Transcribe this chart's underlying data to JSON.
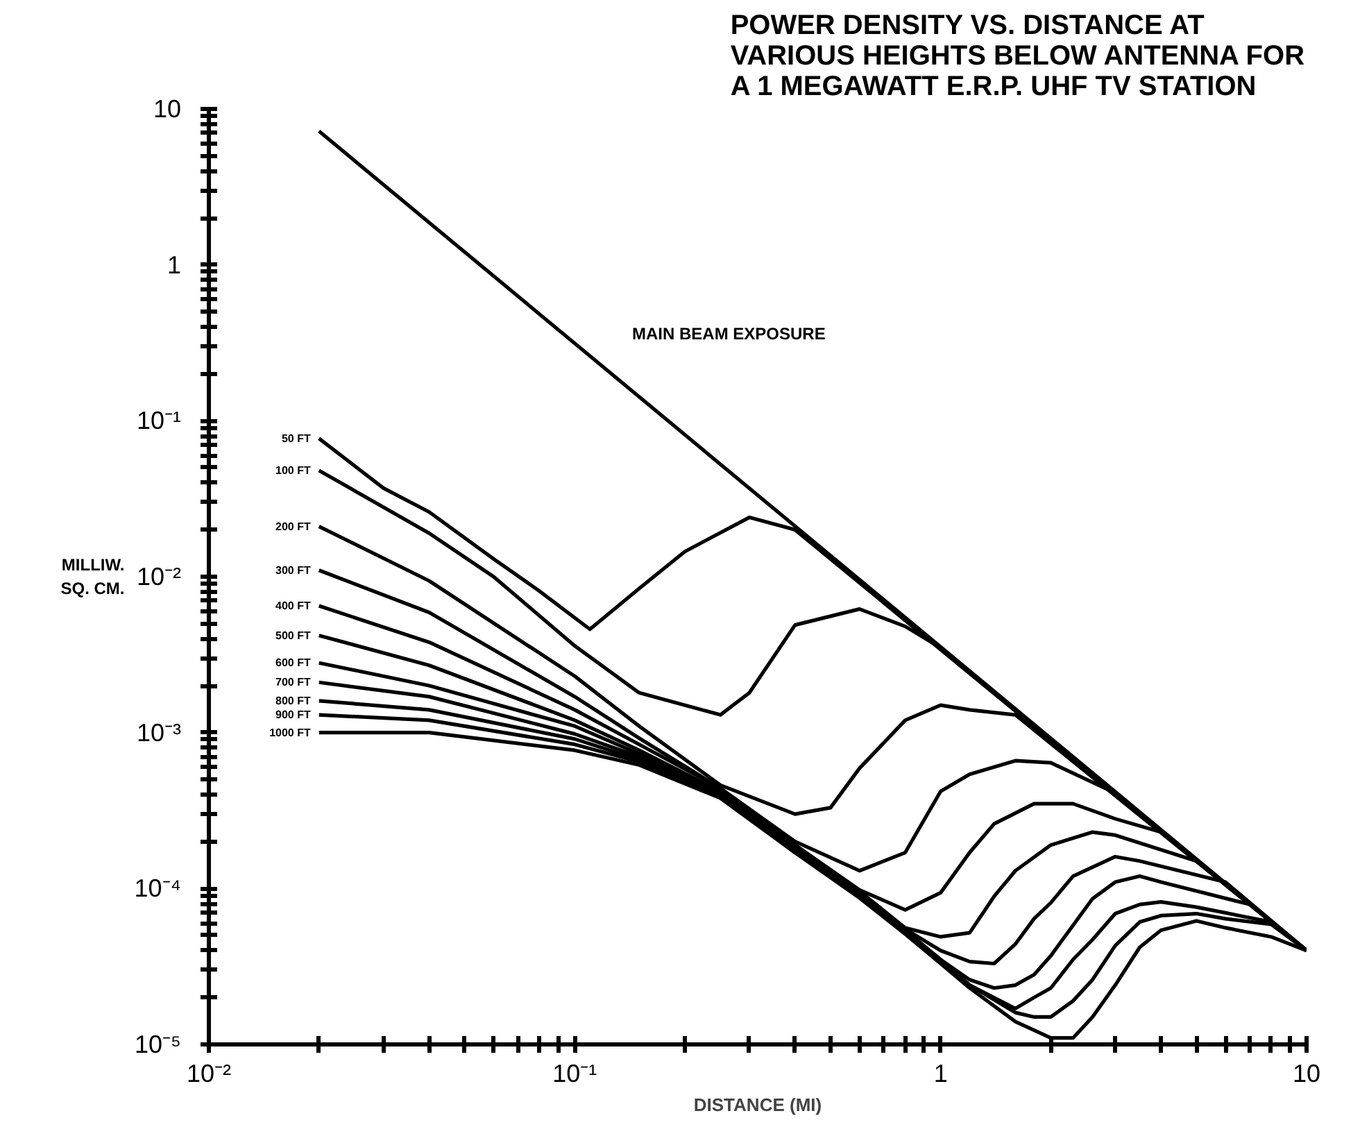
{
  "chart_data": {
    "type": "line",
    "title": "POWER DENSITY VS. DISTANCE AT\nVARIOUS HEIGHTS BELOW ANTENNA FOR\nA 1 MEGAWATT E.R.P. UHF TV STATION",
    "xlabel": "DISTANCE (MI)",
    "ylabel": "MILLIW.\nSQ. CM.",
    "log": "xy",
    "xlim": [
      0.01,
      10
    ],
    "ylim": [
      1e-05,
      10
    ],
    "xticks": [
      {
        "value": 0.01,
        "label": "10⁻²"
      },
      {
        "value": 0.02,
        "label": null
      },
      {
        "value": 0.03,
        "label": null
      },
      {
        "value": 0.04,
        "label": null
      },
      {
        "value": 0.05,
        "label": null
      },
      {
        "value": 0.06,
        "label": null
      },
      {
        "value": 0.07,
        "label": null
      },
      {
        "value": 0.08,
        "label": null
      },
      {
        "value": 0.09,
        "label": null
      },
      {
        "value": 0.1,
        "label": "10⁻¹"
      },
      {
        "value": 0.2,
        "label": null
      },
      {
        "value": 0.3,
        "label": null
      },
      {
        "value": 0.4,
        "label": null
      },
      {
        "value": 0.5,
        "label": null
      },
      {
        "value": 0.6,
        "label": null
      },
      {
        "value": 0.7,
        "label": null
      },
      {
        "value": 0.8,
        "label": null
      },
      {
        "value": 0.9,
        "label": null
      },
      1,
      {
        "value": 2,
        "label": null
      },
      {
        "value": 3,
        "label": null
      },
      {
        "value": 4,
        "label": null
      },
      {
        "value": 5,
        "label": null
      },
      {
        "value": 6,
        "label": null
      },
      {
        "value": 7,
        "label": null
      },
      {
        "value": 8,
        "label": null
      },
      {
        "value": 9,
        "label": null
      },
      10
    ],
    "yticks": [
      {
        "value": 1e-05,
        "label": "10⁻⁵"
      },
      {
        "value": 2e-05,
        "label": null
      },
      {
        "value": 3e-05,
        "label": null
      },
      {
        "value": 4e-05,
        "label": null
      },
      {
        "value": 5e-05,
        "label": null
      },
      {
        "value": 6e-05,
        "label": null
      },
      {
        "value": 7e-05,
        "label": null
      },
      {
        "value": 8e-05,
        "label": null
      },
      {
        "value": 9e-05,
        "label": null
      },
      {
        "value": 0.0001,
        "label": "10⁻⁴"
      },
      {
        "value": 0.0002,
        "label": null
      },
      {
        "value": 0.0003,
        "label": null
      },
      {
        "value": 0.0004,
        "label": null
      },
      {
        "value": 0.0005,
        "label": null
      },
      {
        "value": 0.0006,
        "label": null
      },
      {
        "value": 0.0007,
        "label": null
      },
      {
        "value": 0.0008,
        "label": null
      },
      {
        "value": 0.0009,
        "label": null
      },
      {
        "value": 0.001,
        "label": "10⁻³"
      },
      {
        "value": 0.002,
        "label": null
      },
      {
        "value": 0.003,
        "label": null
      },
      {
        "value": 0.004,
        "label": null
      },
      {
        "value": 0.005,
        "label": null
      },
      {
        "value": 0.006,
        "label": null
      },
      {
        "value": 0.007,
        "label": null
      },
      {
        "value": 0.008,
        "label": null
      },
      {
        "value": 0.009,
        "label": null
      },
      {
        "value": 0.01,
        "label": "10⁻²"
      },
      {
        "value": 0.02,
        "label": null
      },
      {
        "value": 0.03,
        "label": null
      },
      {
        "value": 0.04,
        "label": null
      },
      {
        "value": 0.05,
        "label": null
      },
      {
        "value": 0.06,
        "label": null
      },
      {
        "value": 0.07,
        "label": null
      },
      {
        "value": 0.08,
        "label": null
      },
      {
        "value": 0.09,
        "label": null
      },
      {
        "value": 0.1,
        "label": "10⁻¹"
      },
      {
        "value": 0.2,
        "label": null
      },
      {
        "value": 0.3,
        "label": null
      },
      {
        "value": 0.4,
        "label": null
      },
      {
        "value": 0.5,
        "label": null
      },
      {
        "value": 0.6,
        "label": null
      },
      {
        "value": 0.7,
        "label": null
      },
      {
        "value": 0.8,
        "label": null
      },
      {
        "value": 0.9,
        "label": null
      },
      1,
      {
        "value": 2,
        "label": null
      },
      {
        "value": 3,
        "label": null
      },
      {
        "value": 4,
        "label": null
      },
      {
        "value": 5,
        "label": null
      },
      {
        "value": 6,
        "label": null
      },
      {
        "value": 7,
        "label": null
      },
      {
        "value": 8,
        "label": null
      },
      {
        "value": 9,
        "label": null
      },
      10
    ],
    "annotations": [
      "MAIN BEAM EXPOSURE"
    ],
    "series": [
      {
        "color": "#000000",
        "x": [
          0.02,
          10
        ],
        "values": [
          7.2,
          4e-05
        ]
      },
      {
        "name": "50 FT",
        "color": "#000000",
        "x": [
          0.02,
          0.03,
          0.04,
          0.06,
          0.08,
          0.11,
          0.15,
          0.2,
          0.3,
          0.4,
          10
        ],
        "values": [
          0.077,
          0.037,
          0.026,
          0.013,
          0.0081,
          0.0046,
          0.0084,
          0.0145,
          0.024,
          0.02,
          4e-05
        ]
      },
      {
        "name": "100 FT",
        "color": "#000000",
        "x": [
          0.02,
          0.04,
          0.06,
          0.1,
          0.15,
          0.25,
          0.3,
          0.4,
          0.6,
          0.8,
          1.0,
          10
        ],
        "values": [
          0.048,
          0.019,
          0.01,
          0.0036,
          0.0018,
          0.0013,
          0.0018,
          0.0049,
          0.0062,
          0.0048,
          0.0035,
          4e-05
        ]
      },
      {
        "name": "200 FT",
        "color": "#000000",
        "x": [
          0.02,
          0.04,
          0.1,
          0.15,
          0.25,
          0.4,
          0.5,
          0.6,
          0.8,
          1.0,
          1.2,
          1.6,
          10
        ],
        "values": [
          0.021,
          0.0094,
          0.0023,
          0.0011,
          0.00046,
          0.0003,
          0.00033,
          0.00059,
          0.0012,
          0.0015,
          0.0014,
          0.0013,
          4e-05
        ]
      },
      {
        "name": "300 FT",
        "color": "#000000",
        "x": [
          0.02,
          0.04,
          0.1,
          0.15,
          0.25,
          0.4,
          0.6,
          0.8,
          1.0,
          1.2,
          1.6,
          2.0,
          3.0,
          10
        ],
        "values": [
          0.011,
          0.0059,
          0.0017,
          0.00092,
          0.00044,
          0.0002,
          0.00013,
          0.00017,
          0.00042,
          0.00054,
          0.00066,
          0.00064,
          0.00041,
          4e-05
        ]
      },
      {
        "name": "400 FT",
        "color": "#000000",
        "x": [
          0.02,
          0.04,
          0.1,
          0.15,
          0.25,
          0.4,
          0.6,
          0.8,
          1.0,
          1.2,
          1.4,
          1.8,
          2.3,
          3.0,
          4.0,
          10
        ],
        "values": [
          0.0065,
          0.0038,
          0.0014,
          0.00084,
          0.00044,
          0.00019,
          9.8e-05,
          7.3e-05,
          9.4e-05,
          0.00017,
          0.00026,
          0.00035,
          0.00035,
          0.00028,
          0.00023,
          4e-05
        ]
      },
      {
        "name": "500 FT",
        "color": "#000000",
        "x": [
          0.02,
          0.04,
          0.1,
          0.15,
          0.25,
          0.4,
          0.6,
          0.8,
          1.0,
          1.2,
          1.4,
          1.6,
          2.0,
          2.6,
          3.0,
          5.0,
          10
        ],
        "values": [
          0.0042,
          0.0027,
          0.0012,
          0.00077,
          0.00042,
          0.00019,
          9.6e-05,
          5.6e-05,
          4.9e-05,
          5.2e-05,
          8.9e-05,
          0.00013,
          0.00019,
          0.00023,
          0.00022,
          0.00015,
          4e-05
        ]
      },
      {
        "name": "600 FT",
        "color": "#000000",
        "x": [
          0.02,
          0.04,
          0.1,
          0.15,
          0.25,
          0.4,
          0.6,
          0.8,
          1.0,
          1.2,
          1.4,
          1.6,
          1.8,
          2.0,
          2.3,
          3.0,
          3.5,
          6.0,
          10
        ],
        "values": [
          0.0028,
          0.002,
          0.0011,
          0.00073,
          0.00041,
          0.00018,
          9.4e-05,
          5.5e-05,
          4e-05,
          3.4e-05,
          3.3e-05,
          4.4e-05,
          6.4e-05,
          8.1e-05,
          0.00012,
          0.00016,
          0.00015,
          0.00011,
          4e-05
        ]
      },
      {
        "name": "700 FT",
        "color": "#000000",
        "x": [
          0.02,
          0.04,
          0.1,
          0.15,
          0.25,
          0.4,
          0.6,
          0.8,
          1.0,
          1.2,
          1.4,
          1.6,
          1.8,
          2.0,
          2.3,
          2.6,
          3.0,
          3.5,
          4.0,
          7.0,
          10
        ],
        "values": [
          0.0021,
          0.0017,
          0.00098,
          0.0007,
          0.0004,
          0.00018,
          9.2e-05,
          5.4e-05,
          3.5e-05,
          2.6e-05,
          2.3e-05,
          2.4e-05,
          2.8e-05,
          3.7e-05,
          5.8e-05,
          8.6e-05,
          0.00011,
          0.00012,
          0.00011,
          7.9e-05,
          4e-05
        ]
      },
      {
        "name": "800 FT",
        "color": "#000000",
        "x": [
          0.02,
          0.04,
          0.1,
          0.15,
          0.25,
          0.4,
          0.6,
          0.8,
          1.0,
          1.2,
          1.6,
          1.8,
          2.0,
          2.3,
          2.6,
          3.0,
          3.5,
          4.0,
          5.0,
          8.0,
          10
        ],
        "values": [
          0.0016,
          0.0014,
          0.00091,
          0.00067,
          0.0004,
          0.00018,
          9.1e-05,
          5.3e-05,
          3.5e-05,
          2.4e-05,
          1.7e-05,
          2e-05,
          2.3e-05,
          3.5e-05,
          4.7e-05,
          6.9e-05,
          7.9e-05,
          8.2e-05,
          7.6e-05,
          6.1e-05,
          4e-05
        ]
      },
      {
        "name": "900 FT",
        "color": "#000000",
        "x": [
          0.02,
          0.04,
          0.1,
          0.15,
          0.25,
          0.4,
          0.6,
          0.8,
          1.0,
          1.2,
          1.6,
          1.8,
          2.0,
          2.3,
          2.6,
          3.0,
          3.5,
          4.0,
          5.0,
          6.0,
          8.0,
          10
        ],
        "values": [
          0.0013,
          0.0012,
          0.00084,
          0.00065,
          0.00039,
          0.00017,
          8.9e-05,
          5.2e-05,
          3.4e-05,
          2.4e-05,
          1.6e-05,
          1.5e-05,
          1.5e-05,
          1.9e-05,
          2.6e-05,
          4.3e-05,
          6.1e-05,
          6.7e-05,
          6.9e-05,
          6.4e-05,
          5.9e-05,
          4e-05
        ]
      },
      {
        "name": "1000 FT",
        "color": "#000000",
        "x": [
          0.02,
          0.04,
          0.1,
          0.15,
          0.25,
          0.4,
          0.6,
          0.8,
          1.0,
          1.2,
          1.6,
          2.0,
          2.3,
          2.6,
          3.0,
          3.5,
          4.0,
          5.0,
          6.0,
          8.0,
          10
        ],
        "values": [
          0.001,
          0.001,
          0.00077,
          0.00062,
          0.00038,
          0.00017,
          8.7e-05,
          5.1e-05,
          3.3e-05,
          2.3e-05,
          1.4e-05,
          1.1e-05,
          1.1e-05,
          1.5e-05,
          2.4e-05,
          4.2e-05,
          5.4e-05,
          6.2e-05,
          5.6e-05,
          4.9e-05,
          4e-05
        ]
      }
    ]
  }
}
